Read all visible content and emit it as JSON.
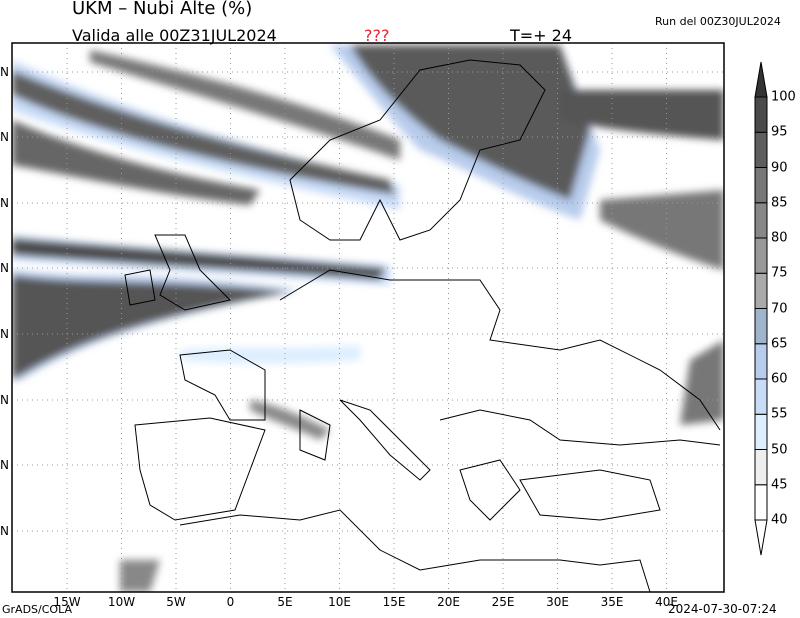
{
  "header": {
    "title": "UKM  –  Nubi Alte (%)",
    "valid": "Valida alle 00Z31JUL2024",
    "flag": "???",
    "timestep": "T=+ 24",
    "run": "Run del 00Z30JUL2024"
  },
  "footer": {
    "credit": "GrADS/COLA",
    "timestamp": "2024-07-30-07:24"
  },
  "map": {
    "lon_labels": [
      "15W",
      "10W",
      "5W",
      "0",
      "5E",
      "10E",
      "15E",
      "20E",
      "25E",
      "30E",
      "35E",
      "40E"
    ],
    "lat_labels": [
      "N",
      "N",
      "N",
      "N",
      "N",
      "N",
      "N",
      "N"
    ],
    "grid": true
  },
  "colorbar": {
    "labels": [
      "40",
      "45",
      "50",
      "55",
      "60",
      "65",
      "70",
      "75",
      "80",
      "85",
      "90",
      "95",
      "100"
    ],
    "colors": [
      "#ffffff",
      "#eeeeee",
      "#ddeeff",
      "#c8dcf8",
      "#b8ccec",
      "#a0b4cc",
      "#aaaaaa",
      "#999999",
      "#888888",
      "#777777",
      "#5e5e5e",
      "#4a4a4a"
    ],
    "under_color": "#ffffff",
    "over_color": "#333333"
  }
}
